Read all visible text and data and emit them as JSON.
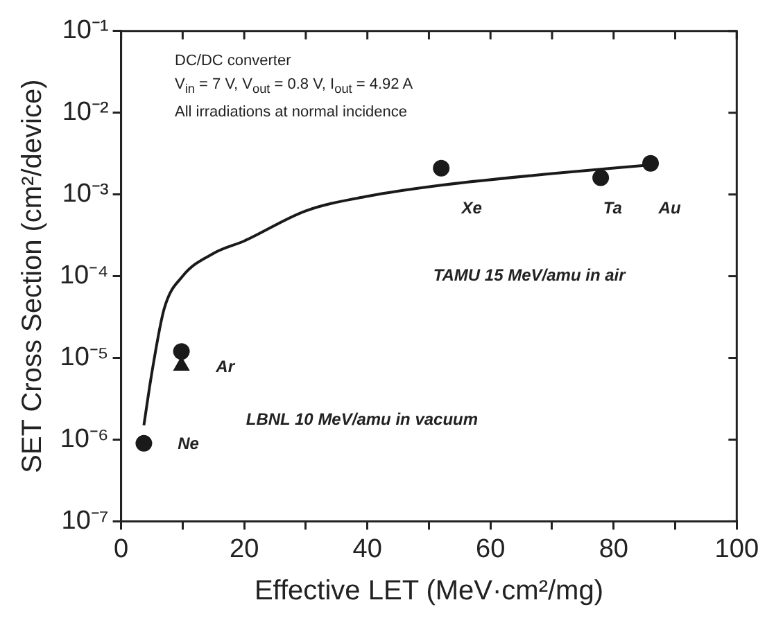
{
  "chart_data": {
    "type": "scatter",
    "xlabel": "Effective LET (MeV·cm²/mg)",
    "ylabel": "SET Cross Section (cm²/device)",
    "log": "y",
    "xlim": [
      0,
      100
    ],
    "xticks": [
      0,
      {
        "value": 10,
        "label": null
      },
      20,
      {
        "value": 30,
        "label": null
      },
      40,
      {
        "value": 50,
        "label": null
      },
      60,
      {
        "value": 70,
        "label": null
      },
      80,
      {
        "value": 90,
        "label": null
      },
      100
    ],
    "ylim": [
      1e-07,
      0.1
    ],
    "yticks": [
      {
        "value": 1e-07,
        "label": "10⁻⁷"
      },
      {
        "value": 1e-06,
        "label": "10⁻⁶"
      },
      {
        "value": 1e-05,
        "label": "10⁻⁵"
      },
      {
        "value": 0.0001,
        "label": "10⁻⁴"
      },
      {
        "value": 0.001,
        "label": "10⁻³"
      },
      {
        "value": 0.01,
        "label": "10⁻²"
      },
      {
        "value": 0.1,
        "label": "10⁻¹"
      }
    ],
    "grid": false,
    "legend": false,
    "series": [
      {
        "type": "scatter",
        "marker": "circle",
        "color": "#1a1a1a",
        "x": [
          3.7,
          9.8,
          52,
          77.9,
          86
        ],
        "values": [
          9e-07,
          1.2e-05,
          0.0021,
          0.0016,
          0.0024
        ]
      },
      {
        "type": "scatter",
        "marker": "triangle",
        "color": "#1a1a1a",
        "x": [
          9.8
        ],
        "values": [
          8e-06
        ]
      },
      {
        "type": "line",
        "marker": "none",
        "color": "#1a1a1a",
        "x": [
          3.7,
          5,
          7,
          10,
          15,
          20,
          30,
          40,
          52,
          70,
          86
        ],
        "values": [
          1.5e-06,
          6.6e-06,
          4e-05,
          0.0001,
          0.00019,
          0.00027,
          0.00063,
          0.00095,
          0.0013,
          0.0018,
          0.0023
        ]
      }
    ],
    "annotations": [
      "DC/DC converter",
      "V$_{in}$ = 7 V, V$_{out}$ = 0.8 V, I$_{out}$ = 4.92 A",
      "All irradiations at normal incidence",
      "Ne",
      "Ar",
      "Xe",
      "Ta",
      "Au",
      "TAMU 15 MeV/amu in air",
      "LBNL 10 MeV/amu in vacuum"
    ]
  }
}
